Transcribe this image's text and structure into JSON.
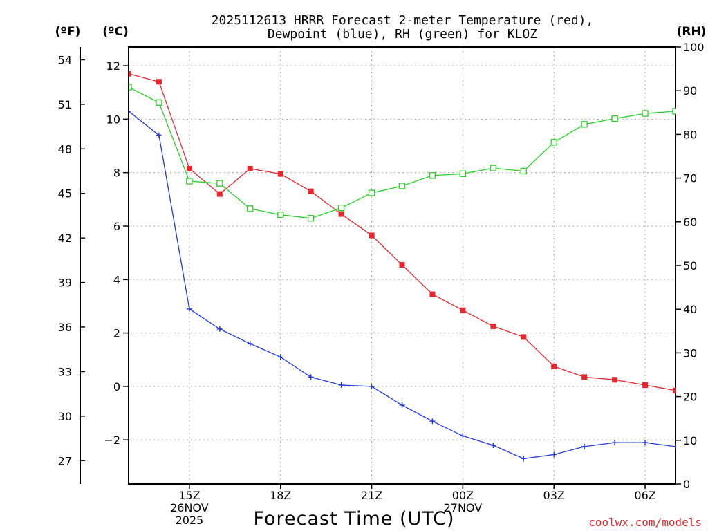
{
  "chart_data": {
    "type": "line",
    "title_line1": "2025112613 HRRR Forecast 2-meter Temperature (red),",
    "title_line2": "Dewpoint (blue), RH (green) for KLOZ",
    "xlabel": "Forecast Time (UTC)",
    "credit": "coolwx.com/models",
    "unit_left_f": "(ºF)",
    "unit_left_c": "(ºC)",
    "unit_right_rh": "(RH)",
    "x_range": [
      13,
      31
    ],
    "x_ticks": [
      {
        "x": 15,
        "lines": [
          "15Z",
          "26NOV",
          "2025"
        ]
      },
      {
        "x": 18,
        "lines": [
          "18Z"
        ]
      },
      {
        "x": 21,
        "lines": [
          "21Z"
        ]
      },
      {
        "x": 24,
        "lines": [
          "00Z",
          "27NOV"
        ]
      },
      {
        "x": 27,
        "lines": [
          "03Z"
        ]
      },
      {
        "x": 30,
        "lines": [
          "06Z"
        ]
      }
    ],
    "celsius_range": [
      -3.65,
      12.7
    ],
    "celsius_ticks": [
      -2,
      0,
      2,
      4,
      6,
      8,
      10,
      12
    ],
    "celsius_tick_labels": [
      "−2",
      "0",
      "2",
      "4",
      "6",
      "8",
      "10",
      "12"
    ],
    "fahrenheit_ticks": [
      27,
      30,
      33,
      36,
      39,
      42,
      45,
      48,
      51,
      54
    ],
    "rh_range": [
      0,
      100
    ],
    "rh_ticks": [
      0,
      10,
      20,
      30,
      40,
      50,
      60,
      70,
      80,
      90,
      100
    ],
    "series": [
      {
        "name": "Temperature",
        "color": "#e8262e",
        "marker": "filled-square",
        "axis": "celsius",
        "x": [
          13,
          14,
          15,
          16,
          17,
          18,
          19,
          20,
          21,
          22,
          23,
          24,
          25,
          26,
          27,
          28,
          29,
          30,
          31
        ],
        "values": [
          11.7,
          11.4,
          8.15,
          7.2,
          8.15,
          7.95,
          7.3,
          6.45,
          5.65,
          4.55,
          3.45,
          2.85,
          2.25,
          1.85,
          0.75,
          0.35,
          0.25,
          0.05,
          -0.15
        ]
      },
      {
        "name": "Dewpoint",
        "color": "#2338e0",
        "marker": "plus",
        "axis": "celsius",
        "x": [
          13,
          14,
          15,
          16,
          17,
          18,
          19,
          20,
          21,
          22,
          23,
          24,
          25,
          26,
          27,
          28,
          29,
          30,
          31
        ],
        "values": [
          10.3,
          9.4,
          2.9,
          2.15,
          1.6,
          1.1,
          0.35,
          0.05,
          0.0,
          -0.7,
          -1.3,
          -1.85,
          -2.2,
          -2.7,
          -2.55,
          -2.25,
          -2.1,
          -2.1,
          -2.25
        ]
      },
      {
        "name": "RH",
        "color": "#22d022",
        "marker": "open-square",
        "axis": "rh",
        "x": [
          13,
          14,
          15,
          16,
          17,
          18,
          19,
          20,
          21,
          22,
          23,
          24,
          25,
          26,
          27,
          28,
          29,
          30,
          31
        ],
        "values": [
          90.8,
          87.3,
          69.3,
          68.8,
          63.0,
          61.6,
          60.8,
          63.2,
          66.6,
          68.2,
          70.6,
          71.0,
          72.3,
          71.6,
          78.2,
          82.3,
          83.6,
          84.8,
          85.3
        ]
      }
    ]
  }
}
